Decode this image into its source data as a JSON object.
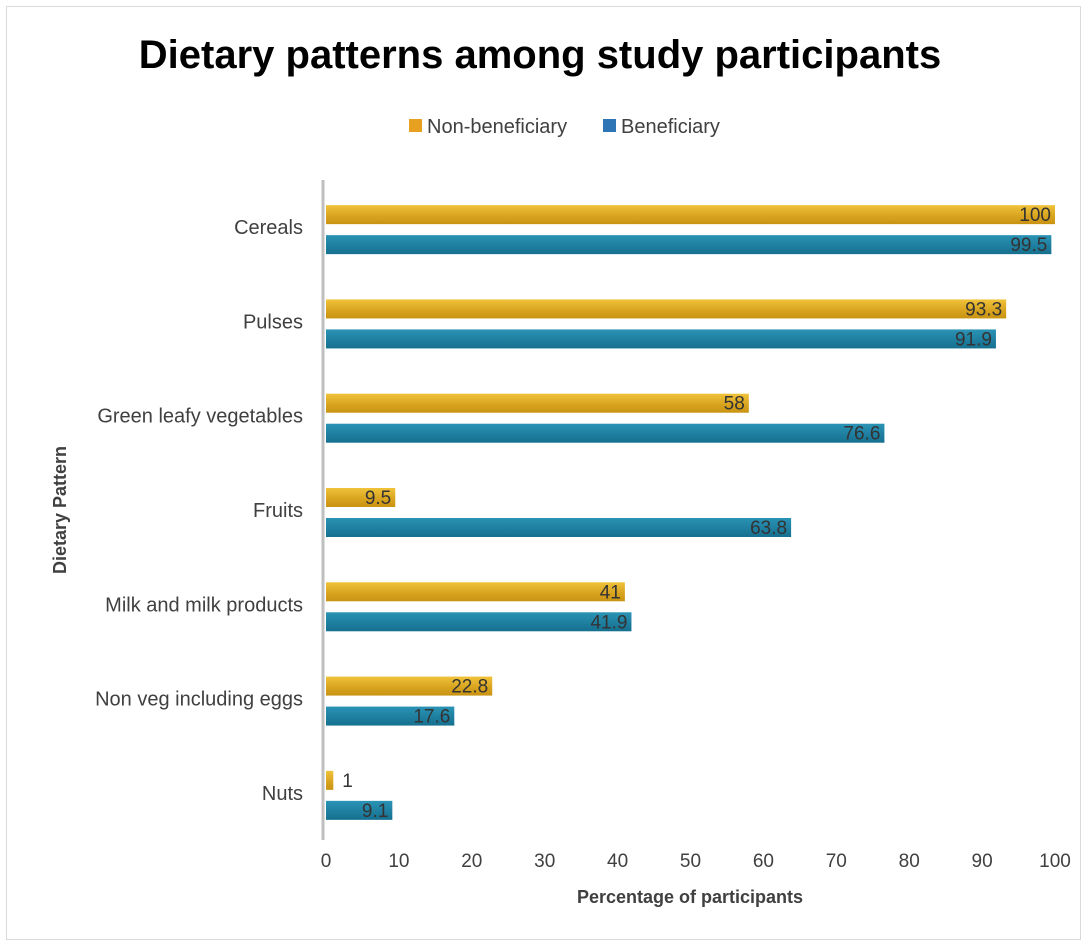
{
  "chart_data": {
    "type": "bar",
    "orientation": "horizontal",
    "title": "Dietary patterns among study participants",
    "xlabel": "Percentage of participants",
    "ylabel": "Dietary Pattern",
    "categories": [
      "Cereals",
      "Pulses",
      "Green leafy vegetables",
      "Fruits",
      "Milk and milk products",
      "Non veg including eggs",
      "Nuts"
    ],
    "series": [
      {
        "name": "Non-beneficiary",
        "values": [
          100,
          93.3,
          58,
          9.5,
          41,
          22.8,
          1
        ],
        "color": "#d9a520"
      },
      {
        "name": "Beneficiary",
        "values": [
          99.5,
          91.9,
          76.6,
          63.8,
          41.9,
          17.6,
          9.1
        ],
        "color": "#1f7fa0"
      }
    ],
    "xlim": [
      0,
      100
    ],
    "xticks": [
      0,
      10,
      20,
      30,
      40,
      50,
      60,
      70,
      80,
      90,
      100
    ],
    "legend_position": "top",
    "grid": false
  }
}
